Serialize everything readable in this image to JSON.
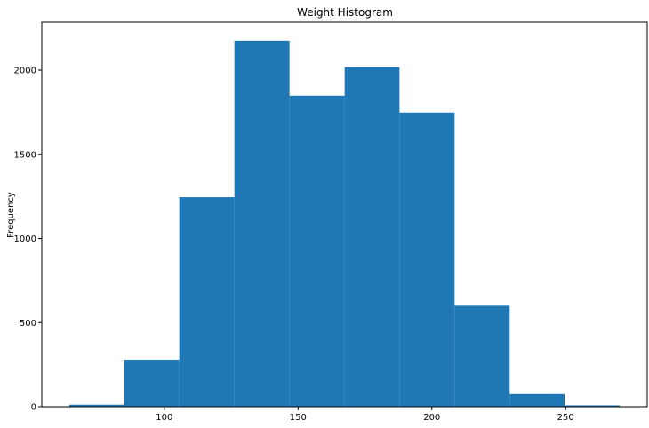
{
  "chart_data": {
    "type": "bar",
    "title": "Weight Histogram",
    "xlabel": "",
    "ylabel": "Frequency",
    "bin_edges": [
      64.5,
      85.1,
      105.6,
      126.2,
      146.8,
      167.4,
      187.9,
      208.5,
      229.1,
      249.6,
      270.2
    ],
    "values": [
      12,
      280,
      1245,
      2175,
      1848,
      2018,
      1748,
      600,
      75,
      8
    ],
    "xlim": [
      54.2,
      280.5
    ],
    "ylim": [
      0,
      2285
    ],
    "xticks": [
      100,
      150,
      200,
      250
    ],
    "yticks": [
      0,
      500,
      1000,
      1500,
      2000
    ],
    "bar_color": "#1f77b4",
    "grid": false,
    "legend": "none"
  }
}
